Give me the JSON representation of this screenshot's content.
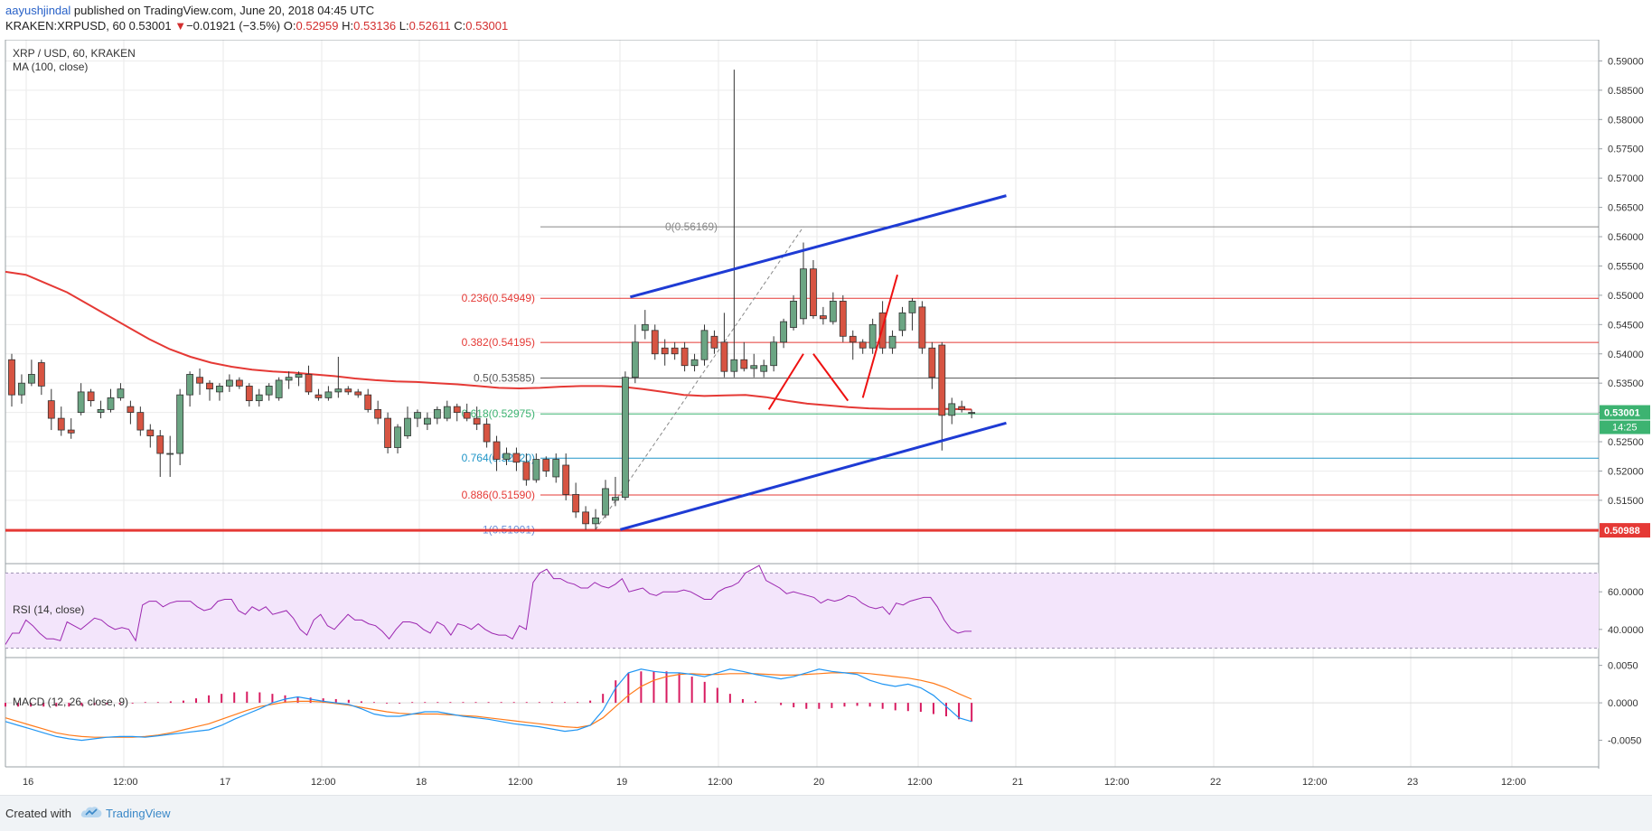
{
  "header": {
    "author": "aayushjindal",
    "published": "published on TradingView.com, June 20, 2018 04:45 UTC",
    "symbol": "KRAKEN:XRPUSD, 60",
    "last": "0.53001",
    "change_arrow": "▼",
    "change": "−0.01921 (−3.5%)",
    "o_label": "O:",
    "o": "0.52959",
    "h_label": "H:",
    "h": "0.53136",
    "l_label": "L:",
    "l": "0.52611",
    "c_label": "C:",
    "c": "0.53001"
  },
  "legend": {
    "title": "XRP / USD, 60, KRAKEN",
    "ma": "MA (100, close)",
    "rsi": "RSI (14, close)",
    "macd": "MACD (12, 26, close, 9)"
  },
  "footer": {
    "created": "Created with",
    "brand": "TradingView"
  },
  "colors": {
    "up": "#6ba583",
    "down": "#d75442",
    "ma": "#e53935",
    "trend": "#1e3bd4",
    "projection": "#ee1111",
    "rsi": "#9c27b0",
    "macd": "#2196f3",
    "signal": "#ff7a1a",
    "hist": "#d81b60",
    "support": "#e53935",
    "last_badge": "#3cb371"
  },
  "chart_data": {
    "type": "candlestick",
    "x_tick_labels": [
      "16",
      "12:00",
      "17",
      "12:00",
      "18",
      "12:00",
      "19",
      "12:00",
      "20",
      "12:00",
      "21",
      "12:00",
      "22",
      "12:00",
      "23",
      "12:00"
    ],
    "price_axis": {
      "ylim": [
        0.5045,
        0.593
      ],
      "ticks": [
        "0.59000",
        "0.58500",
        "0.58000",
        "0.57500",
        "0.57000",
        "0.56500",
        "0.56000",
        "0.55500",
        "0.55000",
        "0.54500",
        "0.54000",
        "0.53500",
        "0.53000",
        "0.52500",
        "0.52000",
        "0.51500"
      ]
    },
    "candles": [
      [
        0.539,
        0.54,
        0.531,
        0.533
      ],
      [
        0.533,
        0.5365,
        0.5315,
        0.535
      ],
      [
        0.535,
        0.539,
        0.5345,
        0.5365
      ],
      [
        0.5385,
        0.539,
        0.533,
        0.5345
      ],
      [
        0.532,
        0.534,
        0.527,
        0.529
      ],
      [
        0.529,
        0.531,
        0.526,
        0.527
      ],
      [
        0.527,
        0.529,
        0.5255,
        0.5265
      ],
      [
        0.53,
        0.535,
        0.5295,
        0.5335
      ],
      [
        0.5335,
        0.534,
        0.531,
        0.532
      ],
      [
        0.53,
        0.532,
        0.529,
        0.5305
      ],
      [
        0.5305,
        0.534,
        0.53,
        0.5325
      ],
      [
        0.5325,
        0.535,
        0.532,
        0.534
      ],
      [
        0.531,
        0.532,
        0.528,
        0.53
      ],
      [
        0.53,
        0.531,
        0.526,
        0.527
      ],
      [
        0.527,
        0.528,
        0.524,
        0.526
      ],
      [
        0.526,
        0.527,
        0.519,
        0.523
      ],
      [
        0.523,
        0.526,
        0.519,
        0.523
      ],
      [
        0.523,
        0.534,
        0.521,
        0.533
      ],
      [
        0.533,
        0.537,
        0.531,
        0.5365
      ],
      [
        0.536,
        0.5375,
        0.533,
        0.535
      ],
      [
        0.535,
        0.5355,
        0.532,
        0.534
      ],
      [
        0.5335,
        0.535,
        0.532,
        0.5345
      ],
      [
        0.5345,
        0.5365,
        0.5335,
        0.5355
      ],
      [
        0.5355,
        0.536,
        0.534,
        0.5345
      ],
      [
        0.5345,
        0.535,
        0.531,
        0.532
      ],
      [
        0.532,
        0.534,
        0.531,
        0.533
      ],
      [
        0.533,
        0.535,
        0.532,
        0.5345
      ],
      [
        0.5325,
        0.536,
        0.532,
        0.5355
      ],
      [
        0.5355,
        0.537,
        0.534,
        0.536
      ],
      [
        0.536,
        0.537,
        0.5345,
        0.5365
      ],
      [
        0.5365,
        0.538,
        0.533,
        0.5335
      ],
      [
        0.533,
        0.534,
        0.532,
        0.5325
      ],
      [
        0.5325,
        0.5345,
        0.532,
        0.5335
      ],
      [
        0.5335,
        0.5395,
        0.5325,
        0.534
      ],
      [
        0.534,
        0.5345,
        0.533,
        0.5335
      ],
      [
        0.5335,
        0.534,
        0.5325,
        0.533
      ],
      [
        0.533,
        0.534,
        0.53,
        0.5305
      ],
      [
        0.5305,
        0.532,
        0.528,
        0.529
      ],
      [
        0.529,
        0.53,
        0.523,
        0.524
      ],
      [
        0.524,
        0.528,
        0.523,
        0.5275
      ],
      [
        0.526,
        0.531,
        0.5255,
        0.529
      ],
      [
        0.529,
        0.5305,
        0.5275,
        0.53
      ],
      [
        0.528,
        0.53,
        0.527,
        0.529
      ],
      [
        0.529,
        0.531,
        0.528,
        0.5305
      ],
      [
        0.529,
        0.532,
        0.5285,
        0.531
      ],
      [
        0.531,
        0.5315,
        0.5285,
        0.53
      ],
      [
        0.53,
        0.5315,
        0.5285,
        0.529
      ],
      [
        0.529,
        0.531,
        0.527,
        0.528
      ],
      [
        0.528,
        0.529,
        0.524,
        0.525
      ],
      [
        0.525,
        0.526,
        0.52,
        0.522
      ],
      [
        0.522,
        0.524,
        0.521,
        0.523
      ],
      [
        0.523,
        0.524,
        0.52,
        0.5215
      ],
      [
        0.5215,
        0.523,
        0.5175,
        0.5185
      ],
      [
        0.5185,
        0.523,
        0.518,
        0.522
      ],
      [
        0.522,
        0.5225,
        0.519,
        0.52
      ],
      [
        0.519,
        0.523,
        0.518,
        0.522
      ],
      [
        0.521,
        0.523,
        0.515,
        0.516
      ],
      [
        0.516,
        0.518,
        0.512,
        0.513
      ],
      [
        0.513,
        0.514,
        0.51,
        0.511
      ],
      [
        0.511,
        0.5135,
        0.51,
        0.512
      ],
      [
        0.5125,
        0.5185,
        0.512,
        0.517
      ],
      [
        0.515,
        0.519,
        0.514,
        0.5155
      ],
      [
        0.5155,
        0.537,
        0.515,
        0.536
      ],
      [
        0.536,
        0.545,
        0.535,
        0.542
      ],
      [
        0.544,
        0.5475,
        0.5425,
        0.545
      ],
      [
        0.544,
        0.545,
        0.539,
        0.54
      ],
      [
        0.541,
        0.5425,
        0.538,
        0.54
      ],
      [
        0.541,
        0.542,
        0.539,
        0.54
      ],
      [
        0.541,
        0.542,
        0.537,
        0.538
      ],
      [
        0.538,
        0.54,
        0.537,
        0.539
      ],
      [
        0.539,
        0.545,
        0.538,
        0.544
      ],
      [
        0.543,
        0.544,
        0.54,
        0.541
      ],
      [
        0.542,
        0.547,
        0.536,
        0.537
      ],
      [
        0.537,
        0.5885,
        0.536,
        0.539
      ],
      [
        0.539,
        0.542,
        0.537,
        0.5375
      ],
      [
        0.5375,
        0.54,
        0.536,
        0.538
      ],
      [
        0.537,
        0.539,
        0.536,
        0.538
      ],
      [
        0.538,
        0.543,
        0.537,
        0.542
      ],
      [
        0.542,
        0.546,
        0.541,
        0.5455
      ],
      [
        0.5445,
        0.55,
        0.544,
        0.549
      ],
      [
        0.546,
        0.559,
        0.545,
        0.5545
      ],
      [
        0.5545,
        0.556,
        0.546,
        0.5465
      ],
      [
        0.5465,
        0.548,
        0.545,
        0.546
      ],
      [
        0.5455,
        0.5505,
        0.545,
        0.549
      ],
      [
        0.549,
        0.55,
        0.542,
        0.543
      ],
      [
        0.543,
        0.544,
        0.539,
        0.542
      ],
      [
        0.542,
        0.5425,
        0.54,
        0.541
      ],
      [
        0.541,
        0.546,
        0.54,
        0.545
      ],
      [
        0.547,
        0.549,
        0.54,
        0.541
      ],
      [
        0.541,
        0.544,
        0.54,
        0.543
      ],
      [
        0.544,
        0.548,
        0.543,
        0.547
      ],
      [
        0.547,
        0.5495,
        0.544,
        0.549
      ],
      [
        0.548,
        0.549,
        0.54,
        0.541
      ],
      [
        0.541,
        0.542,
        0.534,
        0.536
      ],
      [
        0.5415,
        0.542,
        0.5235,
        0.5295
      ],
      [
        0.5295,
        0.5325,
        0.528,
        0.5315
      ],
      [
        0.531,
        0.532,
        0.53,
        0.5305
      ],
      [
        0.53,
        0.5305,
        0.529,
        0.53
      ]
    ],
    "ma100": [
      0.554,
      0.5535,
      0.552,
      0.5505,
      0.5485,
      0.5465,
      0.5445,
      0.5425,
      0.5408,
      0.5395,
      0.5385,
      0.5378,
      0.5373,
      0.537,
      0.5368,
      0.5365,
      0.5362,
      0.5358,
      0.5355,
      0.5353,
      0.5352,
      0.535,
      0.5348,
      0.5345,
      0.5342,
      0.5341,
      0.5342,
      0.5344,
      0.5345,
      0.5345,
      0.5344,
      0.534,
      0.5335,
      0.533,
      0.5328,
      0.5329,
      0.533,
      0.5326,
      0.532,
      0.5315,
      0.5312,
      0.5309,
      0.5307,
      0.5306,
      0.5306,
      0.5306,
      0.5306,
      0.5305
    ],
    "fibonacci": [
      {
        "label": "0(0.56169)",
        "value": 0.56169,
        "color": "#888888"
      },
      {
        "label": "0.236(0.54949)",
        "value": 0.54949,
        "color": "#e53935"
      },
      {
        "label": "0.382(0.54195)",
        "value": 0.54195,
        "color": "#e53935"
      },
      {
        "label": "0.5(0.53585)",
        "value": 0.53585,
        "color": "#555555"
      },
      {
        "label": "0.618(0.52975)",
        "value": 0.52975,
        "color": "#3cb371"
      },
      {
        "label": "0.764(0.52220)",
        "value": 0.5222,
        "color": "#2196c8"
      },
      {
        "label": "0.886(0.51590)",
        "value": 0.5159,
        "color": "#e53935"
      },
      {
        "label": "1(0.51001)",
        "value": 0.51001,
        "color": "#6a8fd8"
      }
    ],
    "support_level": 0.50988,
    "support_label": "0.50988",
    "last_price_label": "0.53001",
    "countdown_label": "14:25",
    "channel": [
      {
        "x0": 62.5,
        "y0": 0.5497,
        "x1": 100.5,
        "y1": 0.567
      },
      {
        "x0": 61.5,
        "y0": 0.51,
        "x1": 100.5,
        "y1": 0.5282
      }
    ],
    "projection": [
      [
        0.5305,
        0.54
      ],
      [
        0.54,
        0.532
      ],
      [
        0.5325,
        0.5535
      ]
    ],
    "rsi": {
      "ylim": [
        26,
        74
      ],
      "ticks": [
        "60.0000",
        "40.0000"
      ],
      "band": [
        30,
        70
      ],
      "values": [
        32,
        38,
        38,
        45,
        42,
        38,
        35,
        35,
        34,
        44,
        42,
        40,
        43,
        46,
        45,
        42,
        40,
        41,
        40,
        34,
        53,
        55,
        55,
        52,
        54,
        55,
        55,
        55,
        52,
        50,
        51,
        55,
        56,
        56,
        50,
        48,
        52,
        50,
        52,
        48,
        49,
        50,
        46,
        40,
        37,
        45,
        48,
        42,
        40,
        44,
        48,
        45,
        45,
        43,
        42,
        39,
        35,
        40,
        44,
        44,
        43,
        40,
        38,
        44,
        42,
        37,
        43,
        42,
        40,
        43,
        40,
        38,
        37,
        37,
        35,
        42,
        40,
        65,
        70,
        72,
        67,
        67,
        65,
        64,
        62,
        62,
        65,
        63,
        62,
        64,
        67,
        60,
        61,
        62,
        59,
        58,
        60,
        60,
        60,
        61,
        60,
        58,
        56,
        56,
        60,
        62,
        63,
        65,
        70,
        72,
        74,
        66,
        64,
        62,
        59,
        60,
        59,
        58,
        57,
        54,
        56,
        55,
        56,
        58,
        57,
        54,
        52,
        51,
        52,
        48,
        54,
        53,
        55,
        56,
        57,
        57,
        52,
        45,
        40,
        38,
        39,
        39
      ]
    },
    "macd": {
      "ylim": [
        -0.0065,
        0.0058
      ],
      "ticks": [
        "0.0050",
        "0.0000",
        "-0.0050"
      ],
      "macd": [
        -0.0025,
        -0.003,
        -0.0035,
        -0.004,
        -0.0045,
        -0.0048,
        -0.005,
        -0.0048,
        -0.0046,
        -0.0045,
        -0.0045,
        -0.0046,
        -0.0044,
        -0.0042,
        -0.004,
        -0.0038,
        -0.0036,
        -0.003,
        -0.0022,
        -0.0015,
        -0.0008,
        0.0,
        0.0005,
        0.0008,
        0.0005,
        0.0002,
        0.0,
        -0.0002,
        -0.0008,
        -0.0015,
        -0.0018,
        -0.0018,
        -0.0015,
        -0.0012,
        -0.0012,
        -0.0015,
        -0.0018,
        -0.002,
        -0.0022,
        -0.0025,
        -0.0028,
        -0.003,
        -0.0032,
        -0.0035,
        -0.0038,
        -0.0036,
        -0.003,
        -0.001,
        0.002,
        0.004,
        0.0045,
        0.0042,
        0.004,
        0.004,
        0.0038,
        0.0035,
        0.004,
        0.0045,
        0.0042,
        0.0038,
        0.0035,
        0.0032,
        0.0035,
        0.004,
        0.0045,
        0.0042,
        0.004,
        0.0038,
        0.003,
        0.0025,
        0.0022,
        0.0025,
        0.002,
        0.001,
        -0.0005,
        -0.002,
        -0.0025
      ],
      "signal": [
        -0.002,
        -0.0025,
        -0.003,
        -0.0035,
        -0.004,
        -0.0043,
        -0.0045,
        -0.0046,
        -0.0046,
        -0.0046,
        -0.0046,
        -0.0045,
        -0.0043,
        -0.004,
        -0.0036,
        -0.0032,
        -0.0028,
        -0.0022,
        -0.0016,
        -0.001,
        -0.0005,
        -0.0002,
        0.0001,
        0.0002,
        0.0002,
        0.0001,
        -0.0001,
        -0.0003,
        -0.0006,
        -0.0009,
        -0.0012,
        -0.0014,
        -0.0015,
        -0.0015,
        -0.0015,
        -0.0016,
        -0.0017,
        -0.0018,
        -0.002,
        -0.0022,
        -0.0024,
        -0.0026,
        -0.0028,
        -0.003,
        -0.0032,
        -0.0033,
        -0.003,
        -0.002,
        -0.0005,
        0.001,
        0.0022,
        0.003,
        0.0035,
        0.0038,
        0.0039,
        0.0038,
        0.0038,
        0.0039,
        0.0039,
        0.0039,
        0.0038,
        0.0037,
        0.0037,
        0.0038,
        0.0039,
        0.004,
        0.004,
        0.004,
        0.0039,
        0.0037,
        0.0035,
        0.0033,
        0.003,
        0.0026,
        0.002,
        0.0012,
        0.0005
      ],
      "hist": [
        -0.0005,
        -0.0005,
        -0.0005,
        -0.0005,
        -0.0005,
        -0.0005,
        -0.0004,
        -0.0003,
        -0.0002,
        -0.0002,
        -0.0001,
        0.0001,
        0.0001,
        0.0002,
        0.0003,
        0.0006,
        0.001,
        0.0012,
        0.0014,
        0.0015,
        0.0014,
        0.0012,
        0.001,
        0.0008,
        0.0007,
        0.0006,
        0.0005,
        0.0004,
        0.0002,
        0.0001,
        -0.0001,
        -0.0001,
        0.0001,
        0.0001,
        0.0001,
        0.0001,
        0.0001,
        0.0001,
        0.0001,
        0.0001,
        0.0001,
        0.0001,
        0.0001,
        0.0001,
        0.0001,
        0.0001,
        0.0003,
        0.0012,
        0.003,
        0.004,
        0.0042,
        0.0042,
        0.0042,
        0.004,
        0.0035,
        0.0028,
        0.002,
        0.0012,
        0.0005,
        0.0002,
        0.0,
        -0.0003,
        -0.0006,
        -0.0008,
        -0.0008,
        -0.0007,
        -0.0005,
        -0.0004,
        -0.0005,
        -0.0008,
        -0.001,
        -0.0011,
        -0.0012,
        -0.0015,
        -0.0018,
        -0.0022,
        -0.0025
      ]
    }
  }
}
